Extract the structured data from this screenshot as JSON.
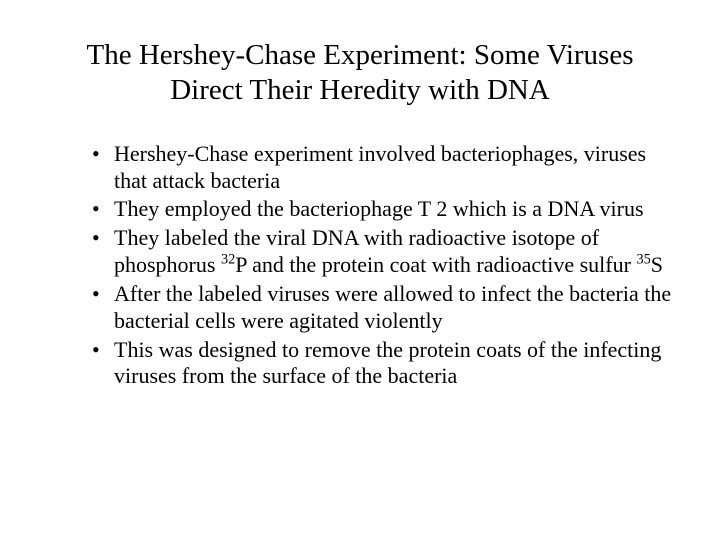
{
  "title": "The Hershey-Chase Experiment: Some Viruses Direct Their Heredity with DNA",
  "bullets": [
    {
      "pre": "Hershey-Chase experiment involved bacteriophages, viruses that attack bacteria"
    },
    {
      "pre": "They employed the bacteriophage T 2 which is a DNA virus"
    },
    {
      "pre": "They labeled the viral DNA with radioactive isotope of phosphorus ",
      "sup1": "32",
      "mid": "P and the protein coat with radioactive sulfur ",
      "sup2": "35",
      "post": "S"
    },
    {
      "pre": "After the labeled viruses were allowed to infect the bacteria the bacterial cells were agitated violently"
    },
    {
      "pre": "This was designed to remove the protein coats of the infecting viruses from the surface of the bacteria"
    }
  ],
  "colors": {
    "background": "#ffffff",
    "text": "#000000"
  },
  "typography": {
    "title_fontsize": 29,
    "body_fontsize": 22,
    "font_family": "Times New Roman"
  }
}
